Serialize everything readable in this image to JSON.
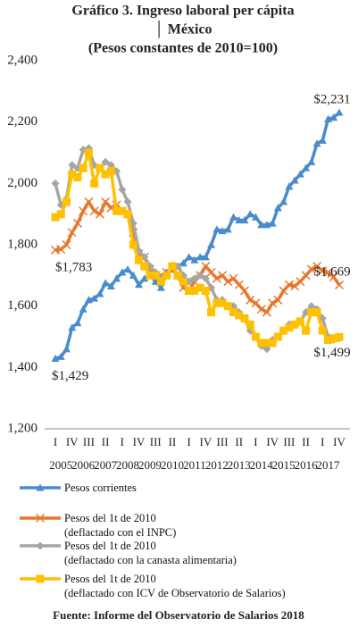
{
  "chart_data": {
    "type": "line",
    "title": "Gráfico 3. Ingreso laboral per cápita",
    "subtitle": [
      "│ México",
      "(Pesos constantes de 2010=100)"
    ],
    "source": "Fuente: Informe del Observatorio de Salarios 2018",
    "categories": [
      "I",
      null,
      null,
      "IV",
      null,
      null,
      "III",
      null,
      null,
      "II",
      null,
      null,
      "I",
      null,
      null,
      "IV",
      null,
      null,
      "III",
      null,
      null,
      "II",
      null,
      null,
      "I",
      null,
      null,
      "IV",
      null,
      null,
      "III",
      null,
      null,
      "II",
      null,
      null,
      "I",
      null,
      null,
      "IV",
      null,
      null,
      "III",
      null,
      null,
      "II",
      null,
      null,
      "I",
      null,
      null,
      "IV"
    ],
    "years": [
      "2005",
      "2006",
      "2007",
      "2008",
      "2009",
      "2010",
      "2011",
      "2012",
      "2013",
      "2014",
      "2015",
      "2016",
      "2017"
    ],
    "ylim": [
      1200,
      2400
    ],
    "yticks": [
      {
        "value": 1200,
        "label": "1,200"
      },
      {
        "value": 1400,
        "label": "1,400"
      },
      {
        "value": 1600,
        "label": "1,600"
      },
      {
        "value": 1800,
        "label": "1,800"
      },
      {
        "value": 2000,
        "label": "2,000"
      },
      {
        "value": 2200,
        "label": "2,200"
      },
      {
        "value": 2400,
        "label": "2,400"
      }
    ],
    "series": [
      {
        "name": "Pesos corrientes",
        "color": "#4a8ccb",
        "marker": "triangle",
        "values": [
          1429,
          1435,
          1460,
          1530,
          1545,
          1590,
          1620,
          1625,
          1640,
          1675,
          1665,
          1690,
          1710,
          1720,
          1700,
          1670,
          1690,
          1700,
          1680,
          1660,
          1710,
          1720,
          1730,
          1740,
          1760,
          1750,
          1760,
          1760,
          1800,
          1850,
          1845,
          1850,
          1890,
          1880,
          1880,
          1900,
          1890,
          1865,
          1865,
          1870,
          1920,
          1940,
          1990,
          2010,
          2030,
          2050,
          2070,
          2130,
          2140,
          2210,
          2215,
          2231
        ],
        "value_labels": [
          "$1,429",
          null,
          null,
          null,
          null,
          null,
          null,
          null,
          null,
          null,
          null,
          null,
          null,
          null,
          null,
          null,
          null,
          null,
          null,
          null,
          null,
          null,
          null,
          null,
          null,
          null,
          null,
          null,
          null,
          null,
          null,
          null,
          null,
          null,
          null,
          null,
          null,
          null,
          null,
          null,
          null,
          null,
          null,
          null,
          null,
          null,
          null,
          null,
          null,
          null,
          null,
          "$2,231"
        ]
      },
      {
        "name": "Pesos del 1t de 2010\n(deflactado con el INPC)",
        "color": "#e8772e",
        "marker": "cross",
        "values": [
          1783,
          1785,
          1800,
          1840,
          1870,
          1910,
          1940,
          1910,
          1900,
          1940,
          1920,
          1930,
          1910,
          1900,
          1840,
          1770,
          1760,
          1720,
          1700,
          1700,
          1710,
          1720,
          1700,
          1660,
          1650,
          1680,
          1700,
          1730,
          1710,
          1690,
          1700,
          1680,
          1690,
          1670,
          1650,
          1620,
          1610,
          1590,
          1580,
          1610,
          1620,
          1650,
          1670,
          1665,
          1680,
          1700,
          1720,
          1730,
          1715,
          1710,
          1695,
          1669
        ],
        "value_labels": [
          "$1,783",
          null,
          null,
          null,
          null,
          null,
          null,
          null,
          null,
          null,
          null,
          null,
          null,
          null,
          null,
          null,
          null,
          null,
          null,
          null,
          null,
          null,
          null,
          null,
          null,
          null,
          null,
          null,
          null,
          null,
          null,
          null,
          null,
          null,
          null,
          null,
          null,
          null,
          null,
          null,
          null,
          null,
          null,
          null,
          null,
          null,
          null,
          null,
          null,
          null,
          null,
          "$1,669"
        ]
      },
      {
        "name": "Pesos del 1t de 2010\n(deflactado con la canasta alimentaria)",
        "color": "#a5a5a5",
        "marker": "diamond",
        "values": [
          2000,
          1930,
          1950,
          2060,
          2050,
          2110,
          2115,
          2060,
          2050,
          2070,
          2060,
          2040,
          1980,
          1940,
          1870,
          1780,
          1760,
          1730,
          1710,
          1690,
          1700,
          1730,
          1730,
          1700,
          1680,
          1690,
          1700,
          1690,
          1660,
          1620,
          1620,
          1600,
          1600,
          1580,
          1560,
          1520,
          1500,
          1470,
          1460,
          1490,
          1500,
          1520,
          1540,
          1540,
          1550,
          1580,
          1600,
          1590,
          1560,
          1500,
          1490,
          1495
        ]
      },
      {
        "name": "Pesos del 1t de 2010\n(deflactado con ICV  de Observatorio de Salarios)",
        "color": "#ffc000",
        "marker": "square",
        "values": [
          1890,
          1900,
          1940,
          2030,
          2020,
          2050,
          2100,
          2000,
          2050,
          2030,
          2040,
          1910,
          1910,
          1900,
          1800,
          1750,
          1730,
          1700,
          1700,
          1680,
          1700,
          1730,
          1700,
          1680,
          1650,
          1650,
          1660,
          1650,
          1580,
          1610,
          1610,
          1600,
          1580,
          1570,
          1560,
          1540,
          1500,
          1480,
          1480,
          1480,
          1500,
          1520,
          1530,
          1540,
          1550,
          1520,
          1580,
          1580,
          1520,
          1490,
          1495,
          1499
        ],
        "value_labels": [
          null,
          null,
          null,
          null,
          null,
          null,
          null,
          null,
          null,
          null,
          null,
          null,
          null,
          null,
          null,
          null,
          null,
          null,
          null,
          null,
          null,
          null,
          null,
          null,
          null,
          null,
          null,
          null,
          null,
          null,
          null,
          null,
          null,
          null,
          null,
          null,
          null,
          null,
          null,
          null,
          null,
          null,
          null,
          null,
          null,
          null,
          null,
          null,
          null,
          null,
          null,
          "$1,499"
        ]
      }
    ]
  }
}
